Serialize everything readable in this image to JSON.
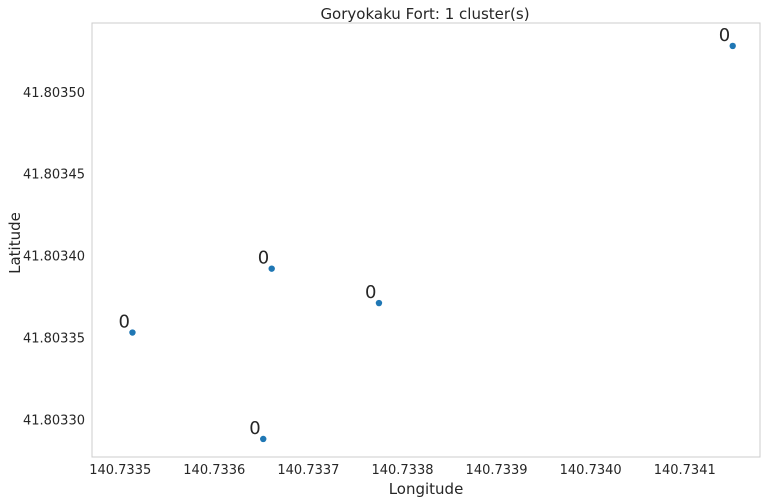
{
  "chart_data": {
    "type": "scatter",
    "title": "Goryokaku Fort: 1 cluster(s)",
    "xlabel": "Longitude",
    "ylabel": "Latitude",
    "xlim": [
      140.73347,
      140.73418
    ],
    "ylim": [
      41.803277,
      41.803542
    ],
    "x_ticks": [
      140.7335,
      140.7336,
      140.7337,
      140.7338,
      140.7339,
      140.734,
      140.7341
    ],
    "x_tick_labels": [
      "140.7335",
      "140.7336",
      "140.7337",
      "140.7338",
      "140.7339",
      "140.7340",
      "140.7341"
    ],
    "y_ticks": [
      41.8033,
      41.80335,
      41.8034,
      41.80345,
      41.8035
    ],
    "y_tick_labels": [
      "41.80330",
      "41.80335",
      "41.80340",
      "41.80345",
      "41.80350"
    ],
    "grid": false,
    "legend": false,
    "point_color": "#1f77b4",
    "points": [
      {
        "x": 140.733513,
        "y": 41.803353,
        "label": "0"
      },
      {
        "x": 140.733652,
        "y": 41.803288,
        "label": "0"
      },
      {
        "x": 140.733661,
        "y": 41.803392,
        "label": "0"
      },
      {
        "x": 140.733775,
        "y": 41.803371,
        "label": "0"
      },
      {
        "x": 140.734151,
        "y": 41.803528,
        "label": "0"
      }
    ]
  }
}
